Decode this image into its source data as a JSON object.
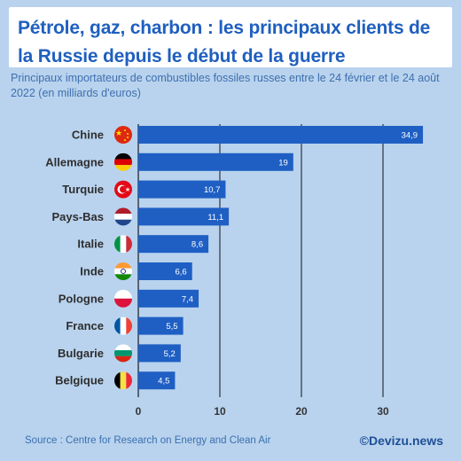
{
  "header": {
    "title_line1": "Pétrole, gaz, charbon : les principaux clients de",
    "title_line2": "la Russie depuis le début de la guerre",
    "subtitle": "Principaux importateurs de combustibles fossiles russes entre le 24 février et le 24 août 2022 (en milliards d'euros)"
  },
  "footer": {
    "source": "Source : Centre for Research on Energy and Clean Air",
    "brand": "©Devizu.news"
  },
  "colors": {
    "background": "#b9d3ee",
    "bar": "#1f5fc4",
    "title": "#1f5fbf",
    "gridline": "#404a58"
  },
  "chart_data": {
    "type": "bar",
    "orientation": "horizontal",
    "categories": [
      "Chine",
      "Allemagne",
      "Turquie",
      "Pays-Bas",
      "Italie",
      "Inde",
      "Pologne",
      "France",
      "Bulgarie",
      "Belgique"
    ],
    "values": [
      34.9,
      19,
      10.7,
      11.1,
      8.6,
      6.6,
      7.4,
      5.5,
      5.2,
      4.5
    ],
    "value_labels": [
      "34,9",
      "19",
      "10,7",
      "11,1",
      "8,6",
      "6,6",
      "7,4",
      "5,5",
      "5,2",
      "4,5"
    ],
    "flags": [
      "china-flag-icon",
      "germany-flag-icon",
      "turkey-flag-icon",
      "netherlands-flag-icon",
      "italy-flag-icon",
      "india-flag-icon",
      "poland-flag-icon",
      "france-flag-icon",
      "bulgaria-flag-icon",
      "belgium-flag-icon"
    ],
    "xticks": [
      0,
      10,
      20,
      30
    ],
    "xtick_labels": [
      "0",
      "10",
      "20",
      "30"
    ],
    "xlim": [
      0,
      35
    ],
    "grid": true
  }
}
